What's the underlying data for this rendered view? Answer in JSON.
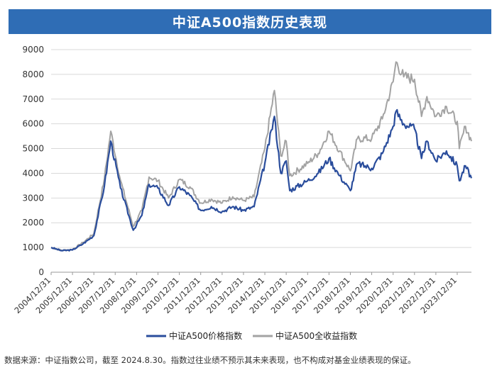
{
  "colors": {
    "title_bg": "#2f6db5",
    "price_index": "#2a4d9c",
    "total_return_index": "#a3a3a3"
  },
  "source_note": "数据来源：中证指数公司，截至 2024.8.30。指数过往业绩不预示其未来表现，也不构成对基金业绩表现的保证。",
  "chart_data": {
    "type": "line",
    "title": "中证A500指数历史表现",
    "xlabel": "",
    "ylabel": "",
    "ylim": [
      0,
      9000
    ],
    "yticks": [
      0,
      1000,
      2000,
      3000,
      4000,
      5000,
      6000,
      7000,
      8000,
      9000
    ],
    "grid": true,
    "legend_position": "bottom",
    "x_tick_labels": [
      "2004/12/31",
      "2005/12/31",
      "2006/12/31",
      "2007/12/31",
      "2008/12/31",
      "2009/12/31",
      "2010/12/31",
      "2011/12/31",
      "2012/12/31",
      "2013/12/31",
      "2014/12/31",
      "2015/12/31",
      "2016/12/31",
      "2017/12/31",
      "2018/12/31",
      "2019/12/31",
      "2020/12/31",
      "2021/12/31",
      "2022/12/31",
      "2023/12/31"
    ],
    "x": [
      "2004-12-31",
      "2005-06-30",
      "2005-12-31",
      "2006-06-30",
      "2006-12-31",
      "2007-06-30",
      "2007-10-16",
      "2008-03-31",
      "2008-11-04",
      "2009-03-31",
      "2009-07-31",
      "2009-12-31",
      "2010-06-30",
      "2010-12-31",
      "2011-06-30",
      "2011-12-31",
      "2012-06-30",
      "2012-12-31",
      "2013-06-30",
      "2013-12-31",
      "2014-06-30",
      "2014-12-31",
      "2015-06-12",
      "2015-09-30",
      "2015-12-31",
      "2016-02-29",
      "2016-12-31",
      "2017-06-30",
      "2017-12-31",
      "2018-06-30",
      "2018-12-31",
      "2019-04-30",
      "2019-12-31",
      "2020-06-30",
      "2020-12-31",
      "2021-02-18",
      "2021-06-30",
      "2021-12-31",
      "2022-04-30",
      "2022-07-31",
      "2022-12-31",
      "2023-06-30",
      "2023-12-31",
      "2024-02-05",
      "2024-05-20",
      "2024-08-30"
    ],
    "series": [
      {
        "name": "中证A500价格指数",
        "values": [
          1000,
          870,
          900,
          1150,
          1480,
          3500,
          5300,
          3400,
          1700,
          2300,
          3550,
          3400,
          2700,
          3450,
          3100,
          2500,
          2650,
          2450,
          2650,
          2500,
          2650,
          4400,
          6300,
          4000,
          4500,
          3300,
          3700,
          4000,
          4600,
          3900,
          3300,
          4400,
          4200,
          4800,
          5900,
          6500,
          6000,
          5800,
          4600,
          5300,
          4500,
          4900,
          4300,
          3700,
          4300,
          3800
        ]
      },
      {
        "name": "中证A500全收益指数",
        "values": [
          1000,
          880,
          920,
          1200,
          1560,
          3800,
          5700,
          3700,
          1850,
          2500,
          3850,
          3700,
          3000,
          3750,
          3450,
          2800,
          2950,
          2800,
          3050,
          2900,
          3050,
          5000,
          7350,
          4700,
          5300,
          3900,
          4400,
          4800,
          5700,
          4900,
          4100,
          5400,
          5400,
          6200,
          7700,
          8500,
          7900,
          7800,
          6300,
          7100,
          6300,
          6700,
          6100,
          5000,
          5900,
          5300
        ]
      }
    ]
  }
}
